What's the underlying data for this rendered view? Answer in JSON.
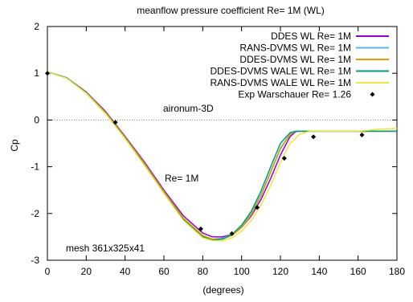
{
  "chart_data": {
    "type": "line",
    "title": "meanflow pressure coefficient  Re= 1M (WL)",
    "xlabel": "(degrees)",
    "ylabel": "Cp",
    "xlim": [
      0,
      180
    ],
    "ylim": [
      -3,
      2
    ],
    "xticks": [
      0,
      20,
      40,
      60,
      80,
      100,
      120,
      140,
      160,
      180
    ],
    "yticks": [
      -3,
      -2,
      -1,
      0,
      1,
      2
    ],
    "grid": false,
    "zero_line": true,
    "legend_position": "top-right",
    "annotations": [
      "aironum-3D",
      "Re= 1M",
      "mesh 361x325x41"
    ],
    "series": [
      {
        "name": "DDES WL Re= 1M",
        "color": "#9400d3",
        "x": [
          0,
          10,
          20,
          30,
          40,
          50,
          60,
          70,
          80,
          85,
          90,
          95,
          100,
          105,
          110,
          115,
          120,
          125,
          128,
          130,
          140,
          150,
          160,
          170,
          180
        ],
        "y": [
          1.03,
          0.9,
          0.6,
          0.18,
          -0.35,
          -0.9,
          -1.5,
          -2.05,
          -2.42,
          -2.5,
          -2.5,
          -2.45,
          -2.3,
          -2.05,
          -1.7,
          -1.25,
          -0.75,
          -0.35,
          -0.25,
          -0.24,
          -0.24,
          -0.24,
          -0.24,
          -0.24,
          -0.24
        ]
      },
      {
        "name": "RANS-DVMS WL Re= 1M",
        "color": "#56b4e9",
        "x": [
          0,
          10,
          20,
          30,
          40,
          50,
          60,
          70,
          80,
          85,
          90,
          95,
          100,
          105,
          110,
          115,
          120,
          125,
          128,
          130,
          140,
          150,
          160,
          170,
          180
        ],
        "y": [
          1.03,
          0.9,
          0.58,
          0.15,
          -0.38,
          -0.95,
          -1.55,
          -2.12,
          -2.48,
          -2.55,
          -2.53,
          -2.45,
          -2.28,
          -2.0,
          -1.6,
          -1.1,
          -0.6,
          -0.3,
          -0.24,
          -0.24,
          -0.24,
          -0.24,
          -0.24,
          -0.24,
          -0.24
        ]
      },
      {
        "name": "DDES-DVMS WL Re= 1M",
        "color": "#e69f00",
        "x": [
          0,
          10,
          20,
          30,
          40,
          50,
          60,
          70,
          80,
          85,
          90,
          95,
          100,
          105,
          110,
          115,
          120,
          125,
          128,
          130,
          140,
          150,
          160,
          170,
          180
        ],
        "y": [
          1.03,
          0.9,
          0.59,
          0.16,
          -0.37,
          -0.93,
          -1.53,
          -2.1,
          -2.47,
          -2.55,
          -2.55,
          -2.47,
          -2.3,
          -2.02,
          -1.62,
          -1.12,
          -0.62,
          -0.31,
          -0.24,
          -0.24,
          -0.24,
          -0.24,
          -0.24,
          -0.24,
          -0.24
        ]
      },
      {
        "name": "DDES-DVMS WALE WL Re= 1M",
        "color": "#009e73",
        "x": [
          0,
          10,
          20,
          30,
          40,
          50,
          60,
          70,
          80,
          85,
          90,
          95,
          100,
          105,
          110,
          115,
          120,
          125,
          128,
          130,
          140,
          150,
          160,
          170,
          180
        ],
        "y": [
          1.03,
          0.9,
          0.58,
          0.14,
          -0.39,
          -0.96,
          -1.56,
          -2.13,
          -2.5,
          -2.57,
          -2.55,
          -2.45,
          -2.25,
          -1.95,
          -1.52,
          -1.0,
          -0.5,
          -0.27,
          -0.24,
          -0.24,
          -0.24,
          -0.24,
          -0.24,
          -0.24,
          -0.24
        ]
      },
      {
        "name": "RANS-DVMS WALE WL Re= 1M",
        "color": "#f0e442",
        "x": [
          0,
          10,
          20,
          30,
          40,
          50,
          60,
          70,
          80,
          85,
          90,
          95,
          100,
          105,
          110,
          115,
          120,
          125,
          130,
          135,
          140,
          150,
          160,
          170,
          180
        ],
        "y": [
          1.03,
          0.89,
          0.57,
          0.13,
          -0.4,
          -0.97,
          -1.57,
          -2.15,
          -2.52,
          -2.58,
          -2.58,
          -2.52,
          -2.38,
          -2.15,
          -1.82,
          -1.4,
          -0.9,
          -0.5,
          -0.3,
          -0.24,
          -0.24,
          -0.24,
          -0.24,
          -0.2,
          -0.18
        ]
      },
      {
        "name": "Exp Warschauer Re= 1.26",
        "color": "#000000",
        "marker": "diamond",
        "x": [
          0,
          35,
          79,
          95,
          108,
          122,
          137,
          162
        ],
        "y": [
          1.0,
          -0.05,
          -2.33,
          -2.43,
          -1.87,
          -0.82,
          -0.36,
          -0.32
        ]
      }
    ]
  }
}
